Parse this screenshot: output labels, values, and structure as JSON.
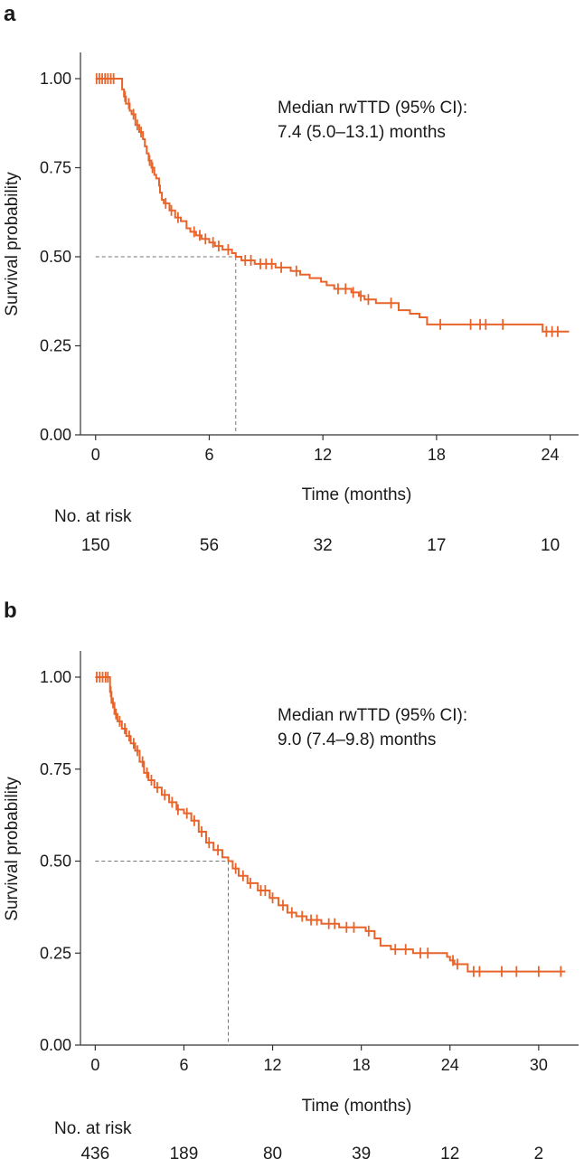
{
  "chart_data": [
    {
      "panel": "a",
      "type": "line",
      "subtype": "kaplan-meier",
      "xlabel": "Time (months)",
      "ylabel": "Survival probability",
      "xlim": [
        -0.8,
        25.5
      ],
      "ylim": [
        0,
        1.0
      ],
      "xticks": [
        0,
        6,
        12,
        18,
        24
      ],
      "yticks": [
        0.0,
        0.25,
        0.5,
        0.75,
        1.0
      ],
      "ytick_labels": [
        "0.00",
        "0.25",
        "0.50",
        "0.75",
        "1.00"
      ],
      "color": "#e8642a",
      "annotation": [
        "Median rwTTD (95% CI):",
        "7.4 (5.0–13.1) months"
      ],
      "median": 7.4,
      "risk_title": "No. at risk",
      "risk_times": [
        0,
        6,
        12,
        18,
        24
      ],
      "risk_counts": [
        "150",
        "56",
        "32",
        "17",
        "10"
      ],
      "steps": [
        [
          0,
          1.0
        ],
        [
          1.2,
          1.0
        ],
        [
          1.4,
          0.97
        ],
        [
          1.5,
          0.95
        ],
        [
          1.6,
          0.93
        ],
        [
          1.8,
          0.91
        ],
        [
          1.9,
          0.9
        ],
        [
          2.1,
          0.87
        ],
        [
          2.3,
          0.85
        ],
        [
          2.5,
          0.83
        ],
        [
          2.6,
          0.81
        ],
        [
          2.7,
          0.79
        ],
        [
          2.8,
          0.77
        ],
        [
          2.95,
          0.75
        ],
        [
          3.1,
          0.73
        ],
        [
          3.2,
          0.72
        ],
        [
          3.35,
          0.7
        ],
        [
          3.4,
          0.68
        ],
        [
          3.5,
          0.66
        ],
        [
          3.6,
          0.65
        ],
        [
          3.9,
          0.63
        ],
        [
          4.2,
          0.61
        ],
        [
          4.5,
          0.6
        ],
        [
          4.8,
          0.58
        ],
        [
          5.0,
          0.57
        ],
        [
          5.3,
          0.56
        ],
        [
          5.6,
          0.55
        ],
        [
          6.0,
          0.54
        ],
        [
          6.3,
          0.53
        ],
        [
          6.7,
          0.52
        ],
        [
          7.2,
          0.51
        ],
        [
          7.4,
          0.5
        ],
        [
          7.7,
          0.49
        ],
        [
          8.4,
          0.48
        ],
        [
          9.5,
          0.47
        ],
        [
          10.3,
          0.46
        ],
        [
          10.8,
          0.45
        ],
        [
          11.3,
          0.44
        ],
        [
          11.9,
          0.43
        ],
        [
          12.2,
          0.42
        ],
        [
          12.6,
          0.41
        ],
        [
          13.5,
          0.4
        ],
        [
          13.9,
          0.39
        ],
        [
          14.2,
          0.38
        ],
        [
          14.8,
          0.37
        ],
        [
          16.0,
          0.35
        ],
        [
          16.6,
          0.34
        ],
        [
          17.1,
          0.33
        ],
        [
          17.5,
          0.31
        ],
        [
          23.6,
          0.29
        ],
        [
          25.0,
          0.29
        ]
      ],
      "censor_times": [
        0.05,
        0.2,
        0.35,
        0.5,
        0.65,
        0.8,
        0.95,
        1.55,
        1.75,
        2.0,
        2.2,
        2.4,
        2.85,
        3.0,
        3.7,
        4.0,
        4.35,
        5.2,
        5.5,
        5.8,
        6.2,
        6.5,
        7.0,
        7.9,
        8.2,
        8.7,
        9.0,
        9.3,
        9.8,
        10.6,
        12.8,
        13.2,
        13.6,
        14.0,
        14.4,
        15.6,
        18.2,
        19.8,
        20.3,
        20.6,
        21.5,
        23.8,
        24.1,
        24.4
      ]
    },
    {
      "panel": "b",
      "type": "line",
      "subtype": "kaplan-meier",
      "xlabel": "Time (months)",
      "ylabel": "Survival probability",
      "xlim": [
        -1.0,
        32.7
      ],
      "ylim": [
        0,
        1.0
      ],
      "xticks": [
        0,
        6,
        12,
        18,
        24,
        30
      ],
      "yticks": [
        0.0,
        0.25,
        0.5,
        0.75,
        1.0
      ],
      "ytick_labels": [
        "0.00",
        "0.25",
        "0.50",
        "0.75",
        "1.00"
      ],
      "color": "#e8642a",
      "annotation": [
        "Median rwTTD (95% CI):",
        "9.0 (7.4–9.8) months"
      ],
      "median": 9.0,
      "risk_title": "No. at risk",
      "risk_times": [
        0,
        6,
        12,
        18,
        24,
        30
      ],
      "risk_counts": [
        "436",
        "189",
        "80",
        "39",
        "12",
        "2"
      ],
      "steps": [
        [
          0,
          1.0
        ],
        [
          0.9,
          1.0
        ],
        [
          1.0,
          0.96
        ],
        [
          1.1,
          0.93
        ],
        [
          1.3,
          0.9
        ],
        [
          1.5,
          0.88
        ],
        [
          1.8,
          0.86
        ],
        [
          2.1,
          0.84
        ],
        [
          2.4,
          0.82
        ],
        [
          2.7,
          0.8
        ],
        [
          3.0,
          0.77
        ],
        [
          3.3,
          0.74
        ],
        [
          3.6,
          0.72
        ],
        [
          4.0,
          0.7
        ],
        [
          4.5,
          0.68
        ],
        [
          5.0,
          0.66
        ],
        [
          5.5,
          0.64
        ],
        [
          6.0,
          0.63
        ],
        [
          6.5,
          0.61
        ],
        [
          7.0,
          0.58
        ],
        [
          7.5,
          0.55
        ],
        [
          8.0,
          0.53
        ],
        [
          8.6,
          0.51
        ],
        [
          9.0,
          0.5
        ],
        [
          9.3,
          0.48
        ],
        [
          9.7,
          0.46
        ],
        [
          10.3,
          0.44
        ],
        [
          11.0,
          0.42
        ],
        [
          11.8,
          0.4
        ],
        [
          12.4,
          0.38
        ],
        [
          13.0,
          0.36
        ],
        [
          13.6,
          0.35
        ],
        [
          14.3,
          0.34
        ],
        [
          15.3,
          0.33
        ],
        [
          16.5,
          0.32
        ],
        [
          18.3,
          0.31
        ],
        [
          18.9,
          0.29
        ],
        [
          19.3,
          0.27
        ],
        [
          20.0,
          0.26
        ],
        [
          21.5,
          0.25
        ],
        [
          23.8,
          0.24
        ],
        [
          24.0,
          0.23
        ],
        [
          24.3,
          0.22
        ],
        [
          25.2,
          0.2
        ],
        [
          31.8,
          0.2
        ]
      ],
      "censor_times": [
        0.1,
        0.3,
        0.5,
        0.7,
        0.85,
        1.05,
        1.2,
        1.4,
        1.65,
        2.0,
        2.3,
        2.6,
        2.85,
        3.2,
        3.5,
        3.8,
        4.2,
        4.7,
        5.2,
        5.6,
        6.2,
        6.7,
        7.2,
        7.7,
        8.3,
        9.5,
        10.0,
        10.5,
        11.2,
        11.5,
        12.0,
        12.7,
        13.3,
        14.0,
        14.6,
        15.0,
        15.8,
        16.2,
        17.0,
        17.5,
        18.5,
        20.3,
        21.0,
        22.0,
        22.5,
        24.2,
        24.5,
        25.6,
        26.0,
        27.5,
        28.5,
        30.0,
        31.5
      ]
    }
  ]
}
